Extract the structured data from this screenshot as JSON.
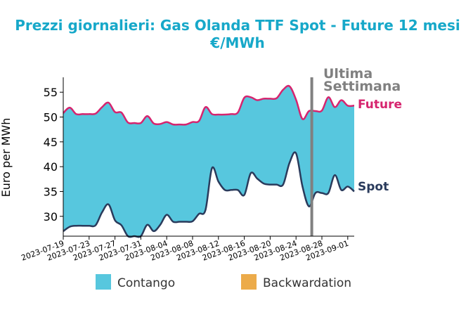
{
  "chart_data": {
    "type": "area",
    "title_line1": "Prezzi giornalieri: Gas Olanda TTF Spot - Future 12 mesi",
    "title_line2": "€/MWh",
    "ylabel": "Euro per MWh",
    "xlabel": "",
    "ylim": [
      26,
      58
    ],
    "yticks": [
      30,
      35,
      40,
      45,
      50,
      55
    ],
    "xlim": [
      "2023-07-19",
      "2023-09-01"
    ],
    "xticks": [
      "2023-07-19",
      "2023-07-23",
      "2023-07-27",
      "2023-07-31",
      "2023-08-04",
      "2023-08-08",
      "2023-08-12",
      "2023-08-16",
      "2023-08-20",
      "2023-08-24",
      "2023-08-28",
      "2023-09-01"
    ],
    "grid": false,
    "annotation": {
      "text_line1": "Ultima",
      "text_line2": "Settimana",
      "x": "2023-08-26",
      "color": "#808080"
    },
    "series": [
      {
        "name": "Future",
        "color": "#d6246e",
        "points": [
          [
            "2023-07-19",
            50.8
          ],
          [
            "2023-07-20",
            51.9
          ],
          [
            "2023-07-21",
            50.6
          ],
          [
            "2023-07-22",
            50.6
          ],
          [
            "2023-07-23",
            50.6
          ],
          [
            "2023-07-24",
            50.7
          ],
          [
            "2023-07-25",
            52.0
          ],
          [
            "2023-07-26",
            52.9
          ],
          [
            "2023-07-27",
            51.0
          ],
          [
            "2023-07-28",
            50.9
          ],
          [
            "2023-07-29",
            48.9
          ],
          [
            "2023-07-30",
            48.8
          ],
          [
            "2023-07-31",
            48.8
          ],
          [
            "2023-08-01",
            50.2
          ],
          [
            "2023-08-02",
            48.7
          ],
          [
            "2023-08-03",
            48.6
          ],
          [
            "2023-08-04",
            49.0
          ],
          [
            "2023-08-05",
            48.5
          ],
          [
            "2023-08-06",
            48.5
          ],
          [
            "2023-08-07",
            48.5
          ],
          [
            "2023-08-08",
            49.0
          ],
          [
            "2023-08-09",
            49.2
          ],
          [
            "2023-08-10",
            52.0
          ],
          [
            "2023-08-11",
            50.6
          ],
          [
            "2023-08-12",
            50.5
          ],
          [
            "2023-08-13",
            50.5
          ],
          [
            "2023-08-14",
            50.6
          ],
          [
            "2023-08-15",
            50.9
          ],
          [
            "2023-08-16",
            53.9
          ],
          [
            "2023-08-17",
            54.0
          ],
          [
            "2023-08-18",
            53.4
          ],
          [
            "2023-08-19",
            53.7
          ],
          [
            "2023-08-20",
            53.7
          ],
          [
            "2023-08-21",
            53.8
          ],
          [
            "2023-08-22",
            55.5
          ],
          [
            "2023-08-23",
            56.2
          ],
          [
            "2023-08-24",
            53.5
          ],
          [
            "2023-08-25",
            49.6
          ],
          [
            "2023-08-26",
            51.2
          ],
          [
            "2023-08-27",
            51.2
          ],
          [
            "2023-08-28",
            51.3
          ],
          [
            "2023-08-29",
            54.0
          ],
          [
            "2023-08-30",
            52.0
          ],
          [
            "2023-08-31",
            53.4
          ],
          [
            "2023-09-01",
            52.3
          ],
          [
            "2023-09-02",
            52.3
          ]
        ]
      },
      {
        "name": "Spot",
        "color": "#2a3b5c",
        "points": [
          [
            "2023-07-19",
            27.0
          ],
          [
            "2023-07-20",
            27.9
          ],
          [
            "2023-07-21",
            28.1
          ],
          [
            "2023-07-22",
            28.1
          ],
          [
            "2023-07-23",
            28.1
          ],
          [
            "2023-07-24",
            28.2
          ],
          [
            "2023-07-25",
            30.8
          ],
          [
            "2023-07-26",
            32.4
          ],
          [
            "2023-07-27",
            29.2
          ],
          [
            "2023-07-28",
            28.2
          ],
          [
            "2023-07-29",
            26.0
          ],
          [
            "2023-07-30",
            25.9
          ],
          [
            "2023-07-31",
            26.0
          ],
          [
            "2023-08-01",
            28.3
          ],
          [
            "2023-08-02",
            27.0
          ],
          [
            "2023-08-03",
            28.3
          ],
          [
            "2023-08-04",
            30.3
          ],
          [
            "2023-08-05",
            28.9
          ],
          [
            "2023-08-06",
            28.9
          ],
          [
            "2023-08-07",
            28.9
          ],
          [
            "2023-08-08",
            29.0
          ],
          [
            "2023-08-09",
            30.5
          ],
          [
            "2023-08-10",
            31.3
          ],
          [
            "2023-08-11",
            39.7
          ],
          [
            "2023-08-12",
            37.0
          ],
          [
            "2023-08-13",
            35.3
          ],
          [
            "2023-08-14",
            35.3
          ],
          [
            "2023-08-15",
            35.3
          ],
          [
            "2023-08-16",
            34.3
          ],
          [
            "2023-08-17",
            38.7
          ],
          [
            "2023-08-18",
            37.6
          ],
          [
            "2023-08-19",
            36.6
          ],
          [
            "2023-08-20",
            36.4
          ],
          [
            "2023-08-21",
            36.4
          ],
          [
            "2023-08-22",
            36.4
          ],
          [
            "2023-08-23",
            40.8
          ],
          [
            "2023-08-24",
            42.7
          ],
          [
            "2023-08-25",
            36.0
          ],
          [
            "2023-08-26",
            32.0
          ],
          [
            "2023-08-27",
            34.7
          ],
          [
            "2023-08-28",
            34.7
          ],
          [
            "2023-08-29",
            34.7
          ],
          [
            "2023-08-30",
            38.3
          ],
          [
            "2023-08-31",
            35.3
          ],
          [
            "2023-09-01",
            36.0
          ],
          [
            "2023-09-02",
            35.0
          ]
        ]
      }
    ],
    "legend": {
      "placement": "bottom",
      "items": [
        {
          "name": "Contango",
          "color": "#57c7de"
        },
        {
          "name": "Backwardation",
          "color": "#ecab4a"
        }
      ]
    },
    "fill_color": "#57c7de"
  }
}
